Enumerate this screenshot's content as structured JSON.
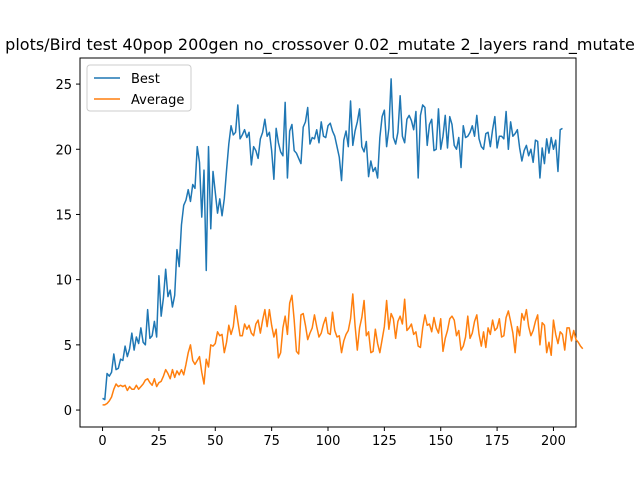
{
  "chart_data": {
    "type": "line",
    "title": "plots/Bird test 40pop 200gen no_crossover 0.02_mutate 2_layers rand_mutate",
    "xlabel": "",
    "ylabel": "",
    "xlim": [
      -10,
      210
    ],
    "ylim": [
      -1.3,
      27.0
    ],
    "xticks": [
      0,
      25,
      50,
      75,
      100,
      125,
      150,
      175,
      200
    ],
    "yticks": [
      0,
      5,
      10,
      15,
      20,
      25
    ],
    "grid": false,
    "legend": "top-left",
    "colors": {
      "best": "#1f77b4",
      "average": "#ff7f0e",
      "axes": "#000000"
    },
    "series": [
      {
        "name": "Best",
        "values": [
          0.9,
          0.8,
          2.8,
          2.6,
          2.9,
          4.3,
          3.1,
          3.2,
          3.9,
          3.8,
          4.9,
          4.1,
          4.7,
          5.9,
          4.6,
          5.6,
          5.1,
          6.3,
          5.2,
          5.0,
          7.7,
          5.5,
          5.7,
          6.8,
          5.6,
          10.3,
          7.2,
          8.6,
          10.8,
          8.7,
          9.2,
          7.9,
          8.8,
          12.3,
          11.0,
          14.2,
          15.7,
          16.1,
          16.9,
          16.0,
          17.3,
          17.0,
          20.2,
          19.0,
          14.8,
          18.4,
          10.7,
          20.2,
          13.9,
          18.3,
          16.7,
          15.1,
          16.2,
          14.9,
          16.2,
          18.4,
          20.4,
          21.8,
          21.1,
          21.3,
          23.4,
          20.8,
          21.1,
          21.5,
          20.9,
          21.3,
          18.8,
          20.2,
          19.9,
          19.3,
          20.8,
          21.3,
          22.3,
          21.0,
          21.3,
          19.9,
          17.7,
          21.6,
          20.5,
          19.8,
          19.5,
          23.6,
          17.8,
          21.4,
          21.9,
          19.9,
          19.7,
          19.3,
          18.9,
          21.7,
          22.1,
          23.2,
          20.4,
          20.9,
          20.8,
          21.5,
          20.5,
          22.1,
          21.0,
          20.9,
          21.8,
          22.0,
          21.4,
          21.0,
          20.2,
          19.4,
          17.6,
          20.7,
          21.4,
          20.2,
          23.7,
          20.3,
          21.4,
          22.1,
          23.1,
          20.2,
          19.8,
          20.6,
          17.9,
          19.1,
          18.3,
          18.6,
          17.8,
          20.9,
          22.5,
          23.0,
          20.2,
          21.6,
          25.4,
          20.9,
          20.4,
          21.3,
          24.1,
          21.0,
          20.5,
          22.3,
          22.6,
          22.2,
          21.5,
          22.9,
          17.8,
          22.6,
          23.4,
          23.2,
          20.3,
          21.9,
          22.3,
          19.9,
          20.0,
          23.1,
          20.0,
          21.0,
          22.6,
          20.1,
          22.5,
          21.9,
          20.3,
          20.0,
          20.9,
          18.6,
          21.8,
          20.9,
          21.0,
          21.3,
          21.8,
          21.0,
          22.6,
          20.8,
          20.2,
          20.0,
          21.2,
          21.3,
          20.2,
          21.5,
          22.5,
          20.1,
          21.0,
          21.0,
          20.8,
          22.9,
          20.0,
          22.1,
          21.0,
          21.2,
          21.5,
          20.1,
          19.1,
          19.9,
          20.3,
          19.5,
          20.0,
          19.0,
          20.7,
          20.6,
          17.8,
          20.1,
          18.9,
          20.8,
          19.7,
          20.9,
          20.0,
          20.7,
          18.3,
          21.5,
          21.6
        ]
      },
      {
        "name": "Average",
        "values": [
          0.4,
          0.4,
          0.5,
          0.7,
          1.0,
          1.6,
          2.0,
          1.8,
          1.9,
          1.8,
          1.9,
          1.5,
          1.8,
          1.6,
          1.6,
          1.9,
          1.6,
          1.8,
          2.0,
          2.3,
          2.4,
          2.1,
          1.9,
          2.4,
          1.8,
          2.1,
          2.2,
          2.6,
          3.1,
          2.8,
          2.4,
          3.1,
          2.5,
          3.0,
          2.7,
          3.1,
          2.7,
          3.5,
          4.4,
          5.0,
          3.8,
          3.5,
          3.8,
          4.1,
          2.9,
          2.0,
          3.9,
          3.3,
          5.0,
          4.9,
          5.1,
          6.0,
          5.7,
          5.8,
          4.4,
          5.2,
          6.5,
          5.8,
          6.4,
          8.0,
          6.8,
          5.7,
          5.7,
          6.6,
          6.2,
          6.5,
          5.9,
          5.7,
          6.6,
          6.9,
          5.9,
          6.9,
          7.7,
          6.4,
          7.7,
          6.5,
          5.6,
          6.2,
          4.0,
          4.4,
          6.3,
          7.2,
          5.8,
          8.2,
          8.8,
          6.9,
          4.5,
          4.3,
          7.3,
          7.4,
          6.5,
          5.4,
          5.9,
          6.3,
          7.3,
          6.4,
          5.6,
          5.9,
          6.6,
          7.1,
          5.9,
          5.8,
          7.5,
          6.1,
          5.6,
          5.7,
          4.4,
          5.3,
          5.8,
          6.1,
          7.0,
          8.9,
          6.5,
          4.6,
          6.3,
          7.1,
          8.4,
          5.7,
          6.0,
          4.4,
          4.5,
          6.2,
          5.1,
          4.4,
          5.4,
          6.4,
          8.4,
          6.2,
          7.4,
          7.0,
          5.5,
          6.8,
          7.2,
          6.6,
          8.5,
          6.1,
          6.3,
          6.6,
          5.8,
          6.0,
          4.9,
          4.8,
          6.3,
          7.3,
          6.5,
          6.6,
          6.0,
          7.1,
          6.3,
          5.9,
          7.0,
          4.5,
          5.5,
          6.1,
          7.0,
          7.2,
          6.9,
          5.7,
          6.1,
          4.6,
          4.9,
          5.6,
          7.2,
          5.5,
          5.9,
          6.8,
          7.3,
          5.8,
          4.9,
          6.0,
          4.8,
          6.3,
          5.8,
          6.9,
          6.1,
          6.3,
          7.0,
          5.6,
          5.7,
          7.1,
          7.6,
          6.8,
          5.9,
          4.4,
          6.4,
          5.7,
          7.4,
          6.9,
          7.7,
          6.4,
          5.7,
          6.1,
          6.8,
          7.3,
          5.0,
          6.7,
          6.5,
          4.4,
          5.2,
          4.2,
          6.9,
          5.8,
          5.1,
          6.0,
          5.8,
          4.6,
          6.3,
          6.3,
          5.3,
          6.1,
          5.4,
          5.2,
          4.9,
          4.7
        ]
      }
    ]
  }
}
